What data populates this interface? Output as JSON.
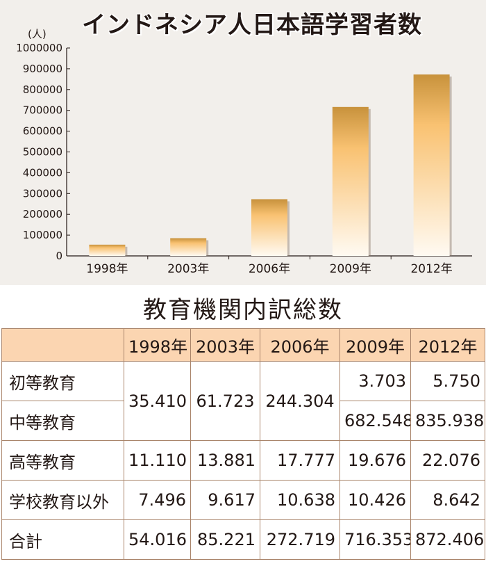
{
  "chart_data": {
    "type": "bar",
    "title": "インドネシア人日本語学習者数",
    "ylabel": "(人)",
    "xlabel": "",
    "categories": [
      "1998年",
      "2003年",
      "2006年",
      "2009年",
      "2012年"
    ],
    "values": [
      54016,
      85221,
      272719,
      716353,
      872406
    ],
    "ylim": [
      0,
      1000000
    ],
    "yticks": [
      "1000000",
      "900000",
      "800000",
      "700000",
      "600000",
      "500000",
      "400000",
      "300000",
      "200000",
      "100000",
      "0"
    ],
    "ytick_values": [
      1000000,
      900000,
      800000,
      700000,
      600000,
      500000,
      400000,
      300000,
      200000,
      100000,
      0
    ],
    "grid": false,
    "bar_color_top": "#c8923c",
    "bar_color_mid": "#f9c272",
    "bar_color_bottom": "#fffaf2"
  },
  "table": {
    "title": "教育機関内訳総数",
    "headers": [
      "",
      "1998年",
      "2003年",
      "2006年",
      "2009年",
      "2012年"
    ],
    "rows": {
      "primary": "初等教育",
      "secondary": "中等教育",
      "higher": "高等教育",
      "non_school": "学校教育以外",
      "total": "合計"
    },
    "cells": {
      "primary_secondary_1998": "35.410",
      "primary_secondary_2003": "61.723",
      "primary_secondary_2006": "244.304",
      "primary_2009": "3.703",
      "primary_2012": "5.750",
      "secondary_2009": "682.548",
      "secondary_2012": "835.938",
      "higher": [
        "11.110",
        "13.881",
        "17.777",
        "19.676",
        "22.076"
      ],
      "non_school": [
        "7.496",
        "9.617",
        "10.638",
        "10.426",
        "8.642"
      ],
      "total": [
        "54.016",
        "85.221",
        "272.719",
        "716.353",
        "872.406"
      ]
    }
  }
}
